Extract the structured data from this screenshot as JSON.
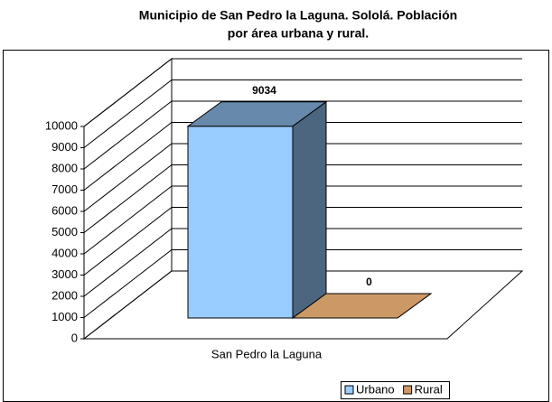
{
  "chart_data": {
    "type": "bar3d",
    "title": [
      "Municipio de San Pedro la Laguna. Sololá. Población",
      "por área urbana y rural."
    ],
    "categories": [
      "San Pedro la Laguna"
    ],
    "series": [
      {
        "name": "Urbano",
        "color": "#99ccff",
        "values": [
          9034
        ]
      },
      {
        "name": "Rural",
        "color": "#cc9966",
        "values": [
          0
        ]
      }
    ],
    "ylim": [
      0,
      10000
    ],
    "yticks": [
      0,
      1000,
      2000,
      3000,
      4000,
      5000,
      6000,
      7000,
      8000,
      9000,
      10000
    ],
    "grid": true,
    "legend": "bottom"
  }
}
